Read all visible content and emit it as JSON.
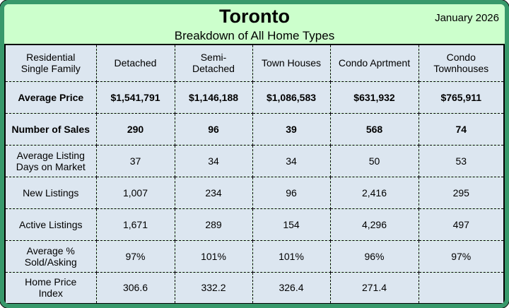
{
  "header": {
    "title": "Toronto",
    "date": "January 2026",
    "subtitle": "Breakdown of All Home Types"
  },
  "chart_data": {
    "type": "table",
    "title": "Toronto",
    "period": "January 2026",
    "subtitle": "Breakdown of All Home Types",
    "corner_header": "Residential\nSingle Family",
    "column_headers": [
      "Detached",
      "Semi-\nDetached",
      "Town Houses",
      "Condo Aprtment",
      "Condo\nTownhouses"
    ],
    "rows": [
      {
        "label": "Average Price",
        "bold": true,
        "values": [
          "$1,541,791",
          "$1,146,188",
          "$1,086,583",
          "$631,932",
          "$765,911"
        ]
      },
      {
        "label": "Number of Sales",
        "bold": true,
        "values": [
          "290",
          "96",
          "39",
          "568",
          "74"
        ]
      },
      {
        "label": "Average Listing\nDays on Market",
        "bold": false,
        "values": [
          "37",
          "34",
          "34",
          "50",
          "53"
        ]
      },
      {
        "label": "New Listings",
        "bold": false,
        "values": [
          "1,007",
          "234",
          "96",
          "2,416",
          "295"
        ]
      },
      {
        "label": "Active Listings",
        "bold": false,
        "values": [
          "1,671",
          "289",
          "154",
          "4,296",
          "497"
        ]
      },
      {
        "label": "Average %\nSold/Asking",
        "bold": false,
        "values": [
          "97%",
          "101%",
          "101%",
          "96%",
          "97%"
        ]
      },
      {
        "label": "Home Price\nIndex",
        "bold": false,
        "values": [
          "306.6",
          "332.2",
          "326.4",
          "271.4",
          ""
        ]
      }
    ]
  },
  "colors": {
    "frame_green": "#38996b",
    "band_green": "#ccffcc",
    "cell_blue": "#dce6f0",
    "text": "#000000"
  }
}
